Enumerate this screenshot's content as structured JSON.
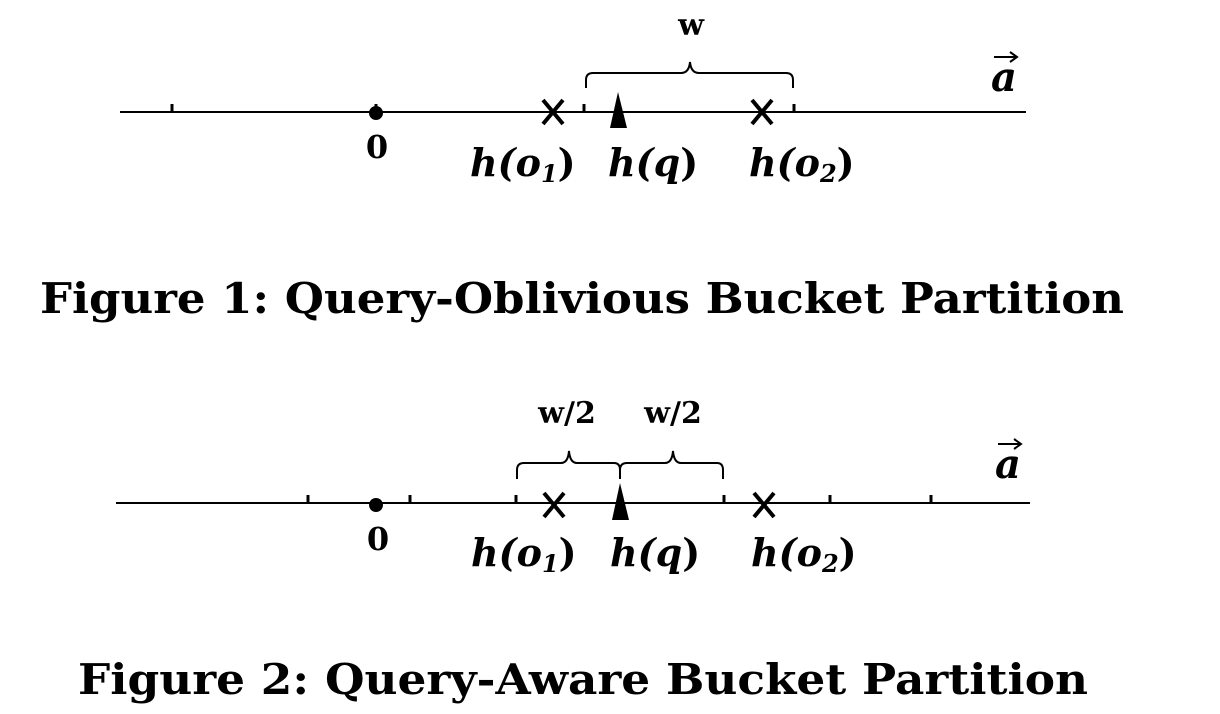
{
  "figure1": {
    "caption": "Figure 1: Query-Oblivious Bucket Partition",
    "width_label": "w",
    "axis_label": "a",
    "origin_label": "0",
    "o1_label": {
      "fn": "h(",
      "var": "o",
      "sub": "1",
      "close": ")"
    },
    "q_label": {
      "fn": "h(",
      "var": "q",
      "close": ")"
    },
    "o2_label": {
      "fn": "h(",
      "var": "o",
      "sub": "2",
      "close": ")"
    }
  },
  "figure2": {
    "caption": "Figure 2: Query-Aware Bucket Partition",
    "left_half_label": "w/2",
    "right_half_label": "w/2",
    "axis_label": "a",
    "origin_label": "0",
    "o1_label": {
      "fn": "h(",
      "var": "o",
      "sub": "1",
      "close": ")"
    },
    "q_label": {
      "fn": "h(",
      "var": "q",
      "close": ")"
    },
    "o2_label": {
      "fn": "h(",
      "var": "o",
      "sub": "2",
      "close": ")"
    }
  }
}
